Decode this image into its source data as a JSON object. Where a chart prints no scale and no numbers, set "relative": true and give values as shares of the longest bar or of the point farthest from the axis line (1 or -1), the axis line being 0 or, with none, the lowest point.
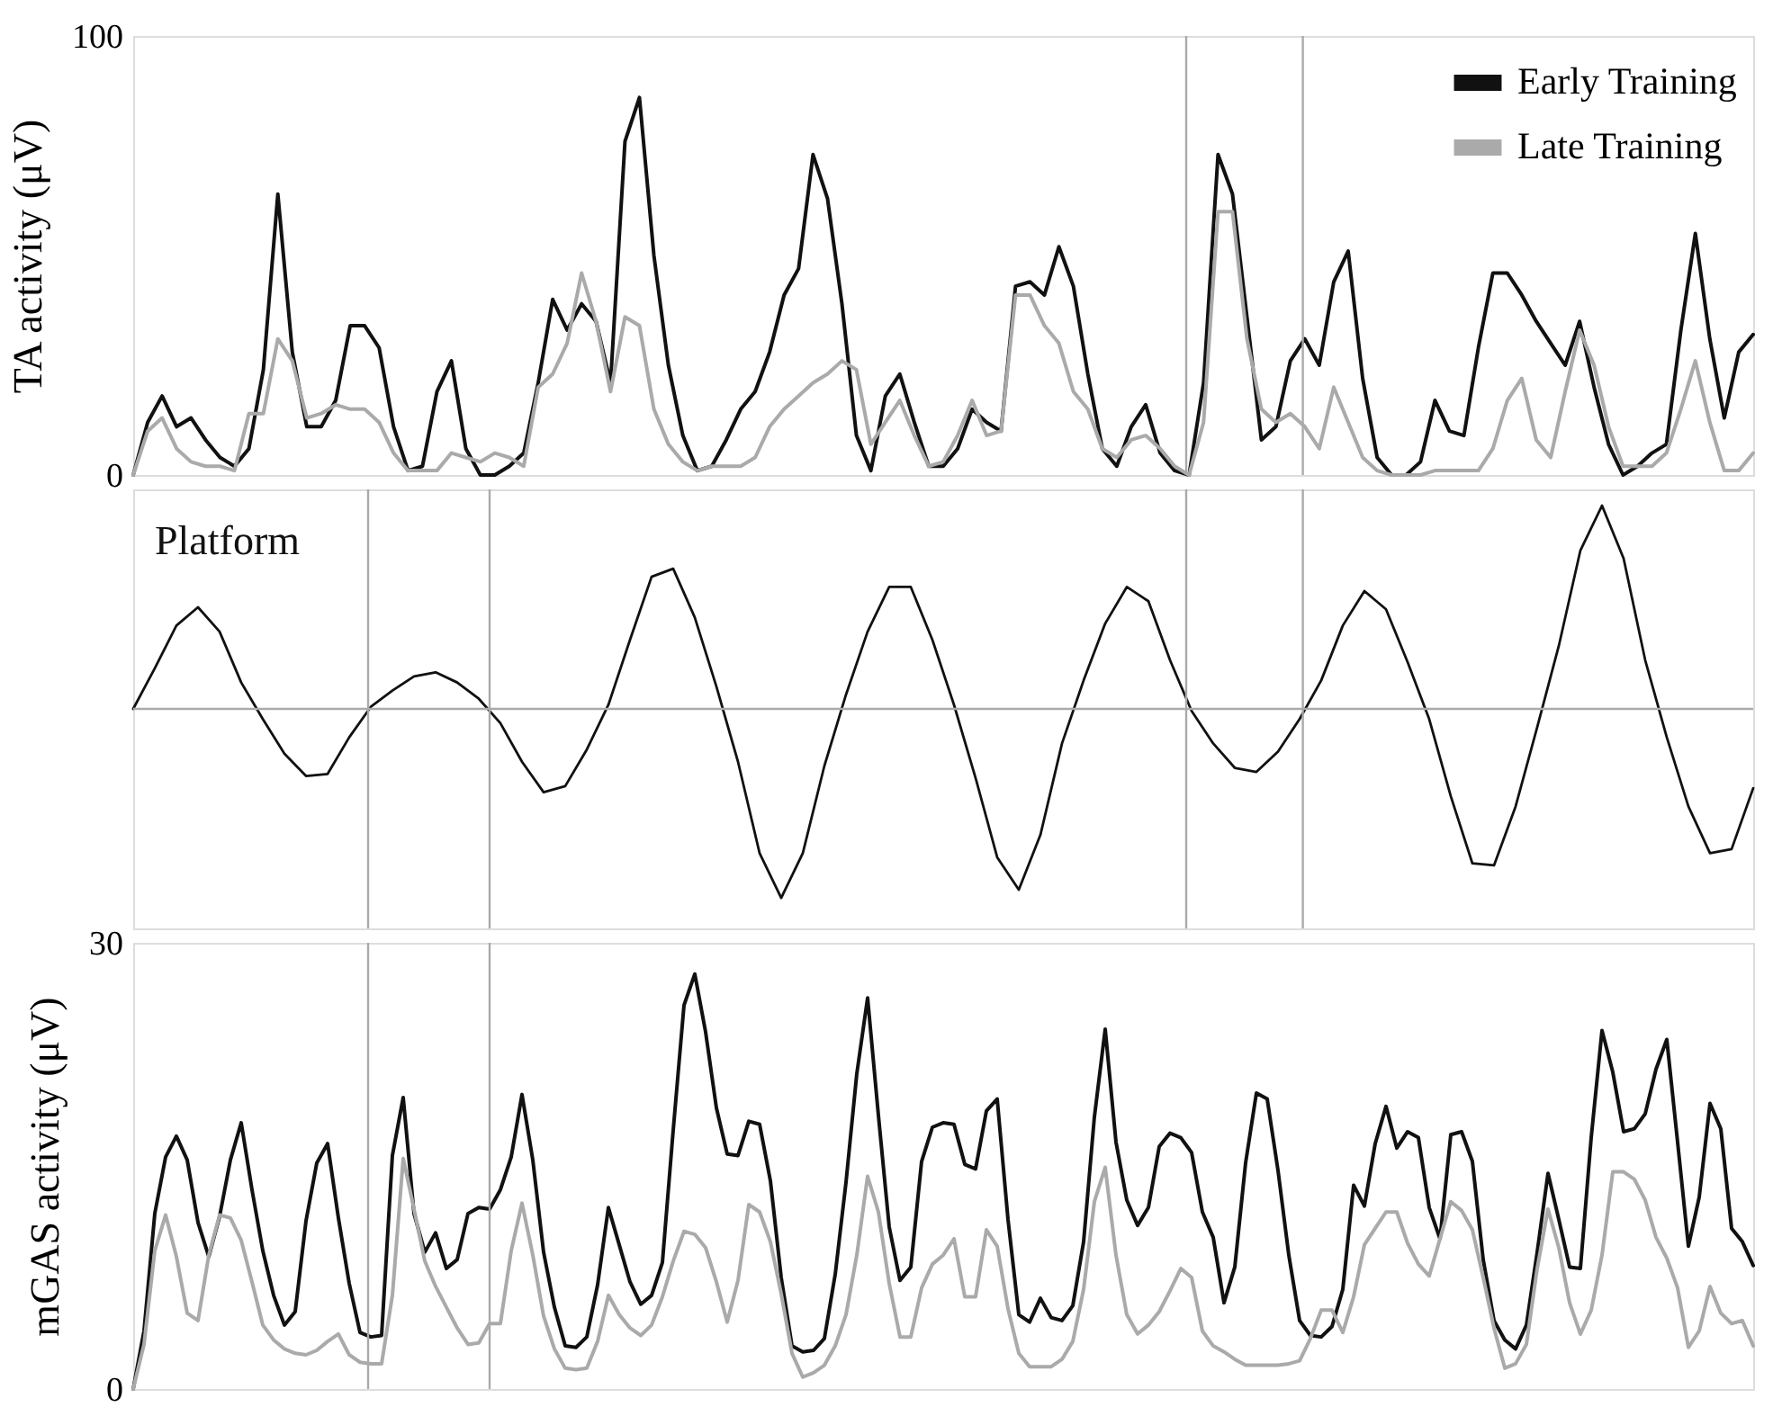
{
  "chart_data": [
    {
      "type": "line",
      "ylabel": "TA activity (μV)",
      "categories": [
        null,
        null,
        null,
        null,
        null,
        null,
        null,
        null,
        null,
        null,
        null,
        null,
        null,
        null,
        null,
        null,
        null,
        null,
        null,
        null,
        null,
        null,
        null,
        null,
        null,
        null,
        null,
        null,
        null,
        null,
        null,
        null,
        null,
        null,
        null,
        null,
        null,
        null,
        null,
        null,
        null,
        null,
        null,
        null,
        null,
        null,
        null,
        null,
        null,
        null,
        null,
        null,
        null,
        null,
        null,
        null,
        null,
        null,
        null,
        null,
        null,
        null,
        null,
        null,
        null,
        null,
        null,
        null,
        null,
        null,
        null,
        null,
        null,
        null,
        null,
        null,
        null,
        null,
        null,
        null,
        null,
        null,
        null,
        null,
        null,
        null,
        null,
        null,
        null,
        null,
        null,
        null,
        null,
        null,
        null,
        null,
        null,
        null,
        null,
        null,
        null,
        null,
        null,
        null,
        null,
        null,
        null,
        null,
        null,
        null,
        null,
        null,
        null
      ],
      "ylim": [
        0,
        100
      ],
      "yticks": [
        0,
        100
      ],
      "tick_labels": "y",
      "legend": "top right",
      "line_style": "solid",
      "series": [
        {
          "name": "Early Training",
          "color": "#111111",
          "values": [
            0,
            12,
            18,
            11,
            13,
            8,
            4,
            2,
            6,
            24,
            64,
            28,
            11,
            11,
            17,
            34,
            34,
            29,
            11,
            1,
            2,
            19,
            26,
            6,
            0,
            0,
            2,
            5,
            21,
            40,
            33,
            39,
            35,
            21,
            76,
            86,
            50,
            25,
            9,
            1,
            2,
            8,
            15,
            19,
            28,
            41,
            47,
            73,
            63,
            39,
            9,
            1,
            18,
            23,
            12,
            2,
            2,
            6,
            15,
            12,
            10,
            43,
            44,
            41,
            52,
            43,
            23,
            6,
            2,
            11,
            16,
            5,
            1,
            0,
            21,
            73,
            64,
            36,
            8,
            11,
            26,
            31,
            25,
            44,
            51,
            22,
            4,
            0,
            0,
            3,
            17,
            10,
            9,
            29,
            46,
            46,
            41,
            35,
            30,
            25,
            35,
            20,
            7,
            0,
            2,
            5,
            7,
            33,
            55,
            31,
            13,
            28,
            32
          ]
        },
        {
          "name": "Late Training",
          "color": "#aaaaaa",
          "values": [
            0,
            10,
            13,
            6,
            3,
            2,
            2,
            1,
            14,
            14,
            31,
            26,
            13,
            14,
            16,
            15,
            15,
            12,
            5,
            1,
            1,
            1,
            5,
            4,
            3,
            5,
            4,
            2,
            20,
            23,
            30,
            46,
            35,
            19,
            36,
            34,
            15,
            7,
            3,
            1,
            2,
            2,
            2,
            4,
            11,
            15,
            18,
            21,
            23,
            26,
            24,
            7,
            12,
            17,
            9,
            2,
            3,
            9,
            17,
            9,
            10,
            41,
            41,
            34,
            30,
            19,
            15,
            6,
            4,
            8,
            9,
            6,
            2,
            0,
            12,
            60,
            60,
            31,
            15,
            12,
            14,
            11,
            6,
            20,
            12,
            4,
            1,
            0,
            0,
            0,
            1,
            1,
            1,
            1,
            6,
            17,
            22,
            8,
            4,
            19,
            33,
            25,
            11,
            2,
            2,
            2,
            5,
            15,
            26,
            12,
            1,
            1,
            5
          ]
        }
      ]
    },
    {
      "type": "line",
      "relative": true,
      "annotations": [
        "Platform"
      ],
      "categories": [
        null,
        null,
        null,
        null,
        null,
        null,
        null,
        null,
        null,
        null,
        null,
        null,
        null,
        null,
        null,
        null,
        null,
        null,
        null,
        null,
        null,
        null,
        null,
        null,
        null,
        null,
        null,
        null,
        null,
        null,
        null,
        null,
        null,
        null,
        null,
        null,
        null,
        null,
        null,
        null,
        null,
        null,
        null,
        null,
        null,
        null,
        null,
        null,
        null,
        null,
        null,
        null,
        null,
        null,
        null,
        null,
        null,
        null,
        null,
        null,
        null,
        null,
        null,
        null,
        null,
        null,
        null,
        null,
        null,
        null,
        null,
        null,
        null,
        null,
        null,
        null
      ],
      "tick_labels": false,
      "line_style": "solid",
      "ref_lines": [
        {
          "axis": "y",
          "value": 0,
          "color": "#aaaaaa"
        }
      ],
      "series": [
        {
          "color": "#111111",
          "values": [
            0.0,
            0.2,
            0.41,
            0.5,
            0.38,
            0.13,
            -0.05,
            -0.22,
            -0.33,
            -0.32,
            -0.14,
            0.01,
            0.09,
            0.16,
            0.18,
            0.13,
            0.05,
            -0.07,
            -0.26,
            -0.41,
            -0.38,
            -0.2,
            0.02,
            0.34,
            0.65,
            0.69,
            0.45,
            0.11,
            -0.26,
            -0.71,
            -0.93,
            -0.71,
            -0.28,
            0.07,
            0.38,
            0.6,
            0.6,
            0.34,
            0.02,
            -0.34,
            -0.73,
            -0.89,
            -0.62,
            -0.17,
            0.14,
            0.42,
            0.6,
            0.53,
            0.24,
            -0.01,
            -0.17,
            -0.29,
            -0.31,
            -0.21,
            -0.05,
            0.14,
            0.41,
            0.58,
            0.49,
            0.23,
            -0.05,
            -0.43,
            -0.76,
            -0.77,
            -0.48,
            -0.09,
            0.31,
            0.78,
            1.0,
            0.74,
            0.24,
            -0.14,
            -0.48,
            -0.71,
            -0.69,
            -0.39
          ]
        }
      ]
    },
    {
      "type": "line",
      "ylabel": "mGAS activity (μV)",
      "categories": [
        null,
        null,
        null,
        null,
        null,
        null,
        null,
        null,
        null,
        null,
        null,
        null,
        null,
        null,
        null,
        null,
        null,
        null,
        null,
        null,
        null,
        null,
        null,
        null,
        null,
        null,
        null,
        null,
        null,
        null,
        null,
        null,
        null,
        null,
        null,
        null,
        null,
        null,
        null,
        null,
        null,
        null,
        null,
        null,
        null,
        null,
        null,
        null,
        null,
        null,
        null,
        null,
        null,
        null,
        null,
        null,
        null,
        null,
        null,
        null,
        null,
        null,
        null,
        null,
        null,
        null,
        null,
        null,
        null,
        null,
        null,
        null,
        null,
        null,
        null,
        null,
        null,
        null,
        null,
        null,
        null,
        null,
        null,
        null,
        null,
        null,
        null,
        null,
        null,
        null,
        null,
        null,
        null,
        null,
        null,
        null,
        null,
        null,
        null,
        null,
        null,
        null,
        null,
        null,
        null,
        null,
        null,
        null,
        null,
        null,
        null,
        null,
        null,
        null,
        null,
        null,
        null,
        null,
        null,
        null,
        null,
        null,
        null,
        null,
        null,
        null,
        null,
        null,
        null,
        null,
        null,
        null,
        null,
        null,
        null,
        null,
        null,
        null,
        null,
        null,
        null,
        null,
        null,
        null,
        null,
        null,
        null,
        null,
        null,
        null,
        null
      ],
      "ylim": [
        0,
        30
      ],
      "yticks": [
        0,
        30
      ],
      "tick_labels": "y",
      "line_style": "solid",
      "series": [
        {
          "color": "#111111",
          "values": [
            0,
            3.9,
            11.8,
            15.6,
            17.0,
            15.4,
            11.2,
            8.9,
            11.6,
            15.4,
            17.9,
            13.4,
            9.3,
            6.3,
            4.3,
            5.2,
            11.3,
            15.2,
            16.5,
            11.5,
            7.1,
            3.8,
            3.5,
            3.6,
            15.7,
            19.6,
            11.8,
            9.2,
            10.5,
            8.1,
            8.7,
            11.8,
            12.2,
            12.1,
            13.4,
            15.6,
            19.8,
            15.4,
            9.2,
            5.5,
            2.9,
            2.8,
            3.5,
            7.0,
            12.2,
            9.7,
            7.2,
            5.7,
            6.3,
            8.5,
            17.4,
            25.8,
            27.9,
            24.0,
            18.9,
            15.8,
            15.7,
            18.0,
            17.8,
            14.0,
            7.5,
            2.9,
            2.5,
            2.6,
            3.4,
            7.7,
            13.9,
            21.2,
            26.3,
            18.4,
            10.9,
            7.3,
            8.2,
            15.3,
            17.6,
            17.9,
            17.8,
            15.1,
            14.8,
            18.7,
            19.5,
            11.4,
            5.0,
            4.5,
            6.1,
            4.8,
            4.6,
            5.6,
            9.9,
            18.3,
            24.2,
            16.6,
            12.7,
            11.0,
            12.2,
            16.3,
            17.2,
            16.9,
            15.9,
            11.9,
            10.2,
            5.8,
            8.2,
            15.2,
            19.9,
            19.5,
            14.7,
            9.0,
            4.6,
            3.6,
            3.5,
            4.2,
            6.7,
            13.7,
            12.3,
            16.5,
            19.0,
            16.2,
            17.3,
            16.9,
            12.2,
            10.1,
            17.1,
            17.3,
            15.3,
            8.7,
            4.6,
            3.3,
            2.7,
            4.3,
            9.2,
            14.5,
            11.4,
            8.2,
            8.1,
            16.9,
            24.1,
            21.3,
            17.3,
            17.5,
            18.5,
            21.5,
            23.5,
            16.6,
            9.6,
            12.9,
            19.2,
            17.5,
            10.8,
            9.9,
            8.3
          ]
        },
        {
          "color": "#aaaaaa",
          "values": [
            0,
            3.0,
            9.3,
            11.7,
            8.9,
            5.1,
            4.6,
            9.0,
            11.7,
            11.5,
            10.0,
            7.2,
            4.3,
            3.3,
            2.7,
            2.4,
            2.3,
            2.6,
            3.2,
            3.7,
            2.3,
            1.8,
            1.7,
            1.7,
            6.3,
            15.5,
            12.1,
            8.6,
            6.9,
            5.5,
            4.1,
            3.0,
            3.1,
            4.4,
            4.4,
            9.3,
            12.5,
            9.0,
            4.9,
            2.7,
            1.4,
            1.3,
            1.4,
            3.2,
            6.3,
            5.0,
            4.1,
            3.6,
            4.3,
            6.2,
            8.6,
            10.6,
            10.4,
            9.5,
            7.2,
            4.5,
            7.3,
            12.4,
            11.9,
            9.9,
            6.4,
            2.4,
            0.8,
            1.1,
            1.6,
            2.9,
            5.0,
            9.0,
            14.3,
            11.9,
            7.1,
            3.5,
            3.5,
            6.8,
            8.4,
            9.0,
            10.1,
            6.2,
            6.2,
            10.7,
            9.6,
            5.4,
            2.4,
            1.5,
            1.5,
            1.5,
            2.0,
            3.2,
            6.7,
            12.6,
            14.9,
            9.0,
            5.0,
            3.7,
            4.3,
            5.2,
            6.6,
            8.1,
            7.5,
            3.9,
            2.9,
            2.5,
            2.0,
            1.6,
            1.6,
            1.6,
            1.6,
            1.7,
            1.9,
            3.4,
            5.3,
            5.3,
            3.8,
            6.2,
            9.7,
            10.8,
            11.9,
            11.9,
            9.8,
            8.4,
            7.6,
            10.1,
            12.6,
            12.0,
            10.7,
            7.5,
            4.1,
            1.4,
            1.7,
            3.0,
            8.1,
            12.1,
            9.5,
            5.8,
            3.7,
            5.3,
            9.0,
            14.6,
            14.6,
            14.1,
            12.7,
            10.2,
            8.8,
            6.8,
            2.8,
            3.9,
            6.9,
            5.1,
            4.4,
            4.6,
            2.9
          ]
        }
      ]
    }
  ]
}
